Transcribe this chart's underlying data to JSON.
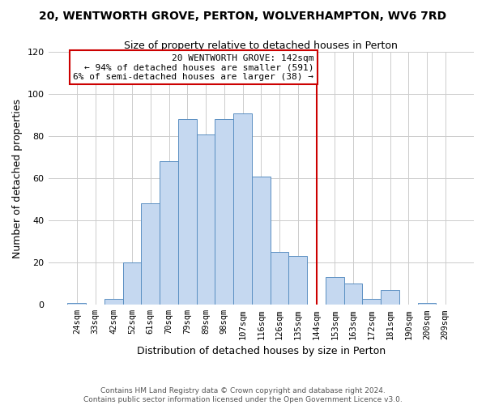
{
  "title": "20, WENTWORTH GROVE, PERTON, WOLVERHAMPTON, WV6 7RD",
  "subtitle": "Size of property relative to detached houses in Perton",
  "xlabel": "Distribution of detached houses by size in Perton",
  "ylabel": "Number of detached properties",
  "bar_labels": [
    "24sqm",
    "33sqm",
    "42sqm",
    "52sqm",
    "61sqm",
    "70sqm",
    "79sqm",
    "89sqm",
    "98sqm",
    "107sqm",
    "116sqm",
    "126sqm",
    "135sqm",
    "144sqm",
    "153sqm",
    "163sqm",
    "172sqm",
    "181sqm",
    "190sqm",
    "200sqm",
    "209sqm"
  ],
  "bar_values": [
    1,
    0,
    3,
    20,
    48,
    68,
    88,
    81,
    88,
    91,
    61,
    25,
    23,
    0,
    13,
    10,
    3,
    7,
    0,
    1,
    0
  ],
  "bar_color": "#c5d8f0",
  "bar_edge_color": "#5a8fc2",
  "vline_x_index": 13,
  "annotation_title": "20 WENTWORTH GROVE: 142sqm",
  "annotation_line1": "← 94% of detached houses are smaller (591)",
  "annotation_line2": "6% of semi-detached houses are larger (38) →",
  "annotation_box_color": "#ffffff",
  "annotation_box_edge_color": "#cc0000",
  "vline_color": "#cc0000",
  "ylim": [
    0,
    120
  ],
  "yticks": [
    0,
    20,
    40,
    60,
    80,
    100,
    120
  ],
  "footer_line1": "Contains HM Land Registry data © Crown copyright and database right 2024.",
  "footer_line2": "Contains public sector information licensed under the Open Government Licence v3.0.",
  "background_color": "#ffffff",
  "grid_color": "#cccccc"
}
